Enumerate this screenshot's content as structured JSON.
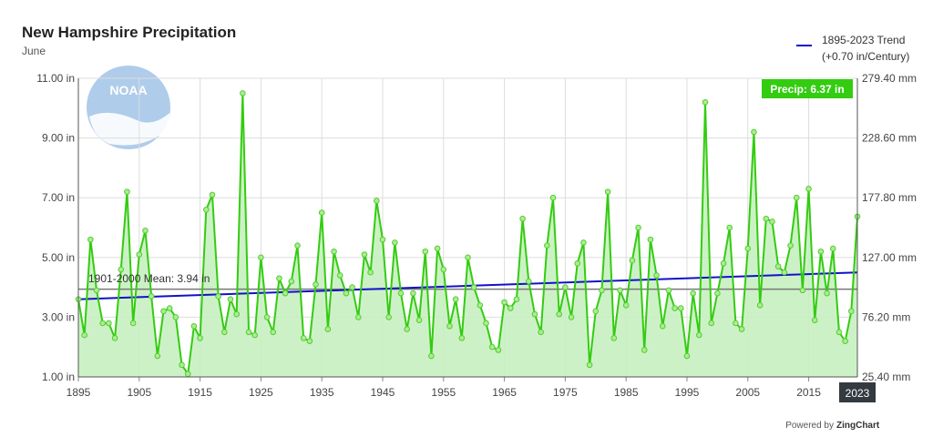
{
  "chart_data": {
    "type": "line",
    "title": "New Hampshire Precipitation",
    "subtitle": "June",
    "x_start": 1895,
    "x_end": 2023,
    "xlim": [
      1895,
      2023
    ],
    "x_ticks": [
      1895,
      1905,
      1915,
      1925,
      1935,
      1945,
      1955,
      1965,
      1975,
      1985,
      1995,
      2005,
      2015
    ],
    "x_tick_labels": [
      "1895",
      "1905",
      "1915",
      "1925",
      "1935",
      "1945",
      "1955",
      "1965",
      "1975",
      "1985",
      "1995",
      "2005",
      "2015"
    ],
    "ylim": [
      1.0,
      11.0
    ],
    "y_ticks": [
      1,
      3,
      5,
      7,
      9,
      11
    ],
    "y_tick_labels": [
      "1.00 in",
      "3.00 in",
      "5.00 in",
      "7.00 in",
      "9.00 in",
      "11.00 in"
    ],
    "y2_tick_labels": [
      "25.40 mm",
      "76.20 mm",
      "127.00 mm",
      "177.80 mm",
      "228.60 mm",
      "279.40 mm"
    ],
    "grid": true,
    "series": [
      {
        "name": "Precip",
        "color": "#33cc11",
        "fill": "#c8f0c0",
        "values": [
          3.6,
          2.4,
          5.6,
          3.9,
          2.8,
          2.8,
          2.3,
          4.6,
          7.2,
          2.8,
          5.1,
          5.9,
          3.7,
          1.7,
          3.2,
          3.3,
          3.0,
          1.4,
          1.1,
          2.7,
          2.3,
          6.6,
          7.1,
          3.7,
          2.5,
          3.6,
          3.1,
          10.5,
          2.5,
          2.4,
          5.0,
          3.0,
          2.5,
          4.3,
          3.8,
          4.2,
          5.4,
          2.3,
          2.2,
          4.1,
          6.5,
          2.6,
          5.2,
          4.4,
          3.8,
          4.0,
          3.0,
          5.1,
          4.5,
          6.9,
          5.6,
          3.0,
          5.5,
          3.8,
          2.6,
          3.8,
          2.9,
          5.2,
          1.7,
          5.3,
          4.6,
          2.7,
          3.6,
          2.3,
          5.0,
          4.0,
          3.4,
          2.8,
          2.0,
          1.9,
          3.5,
          3.3,
          3.6,
          6.3,
          4.2,
          3.1,
          2.5,
          5.4,
          7.0,
          3.1,
          4.0,
          3.0,
          4.8,
          5.5,
          1.4,
          3.2,
          3.9,
          7.2,
          2.3,
          3.9,
          3.4,
          4.9,
          6.0,
          1.9,
          5.6,
          4.4,
          2.7,
          3.9,
          3.3,
          3.3,
          1.7,
          3.8,
          2.4,
          10.2,
          2.8,
          3.8,
          4.8,
          6.0,
          2.8,
          2.6,
          5.3,
          9.2,
          3.4,
          6.3,
          6.2,
          4.7,
          4.5,
          5.4,
          7.0,
          3.9,
          7.3,
          2.9,
          5.2,
          3.8,
          5.3,
          2.5,
          2.2,
          3.2,
          6.37
        ]
      }
    ],
    "trend": {
      "label_line1": "1895-2023 Trend",
      "label_line2": "(+0.70 in/Century)",
      "color": "#1111cc",
      "start_value": 3.6,
      "end_value": 4.5
    },
    "mean": {
      "label": "1901-2000 Mean: 3.94 in",
      "value": 3.94,
      "color": "#777777"
    },
    "current": {
      "badge": "Precip: 6.37 in",
      "year_label": "2023",
      "badge_color": "#33cc11"
    },
    "legend_position": "top-right"
  },
  "footer": {
    "powered_prefix": "Powered by",
    "powered_brand": "ZingChart"
  },
  "logo": {
    "text": "NOAA"
  }
}
